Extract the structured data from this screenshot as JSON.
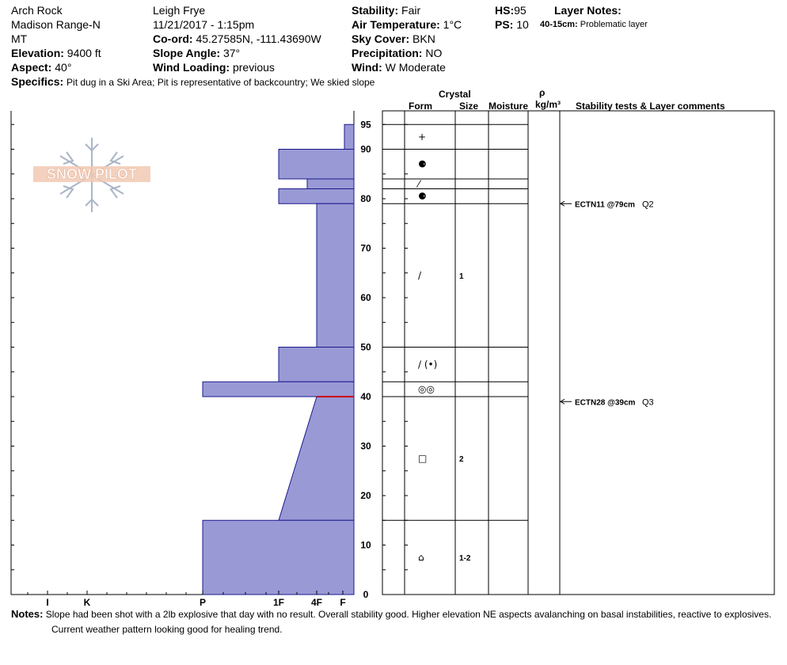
{
  "header": {
    "location": "Arch Rock",
    "range": "Madison Range-N",
    "state": "MT",
    "elevation_label": "Elevation:",
    "elevation": "9400 ft",
    "aspect_label": "Aspect:",
    "aspect": "40°",
    "observer": "Leigh Frye",
    "datetime": "11/21/2017 - 1:15pm",
    "coord_label": "Co-ord:",
    "coord": "45.27585N, -111.43690W",
    "slope_label": "Slope Angle:",
    "slope": "37°",
    "wind_loading_label": "Wind Loading:",
    "wind_loading": "previous",
    "stability_label": "Stability:",
    "stability": "Fair",
    "air_temp_label": "Air Temperature:",
    "air_temp": "1°C",
    "sky_label": "Sky Cover:",
    "sky": "BKN",
    "precip_label": "Precipitation:",
    "precip": "NO",
    "wind_label": "Wind:",
    "wind": "W Moderate",
    "hs_label": "HS:",
    "hs": "95",
    "ps_label": "PS:",
    "ps": "10",
    "layer_notes_label": "Layer Notes:",
    "layer_note_depth": "40-15cm:",
    "layer_note_text": "Problematic layer",
    "specifics_label": "Specifics:",
    "specifics": "Pit dug in a Ski Area; Pit is representative of backcountry; We skied slope"
  },
  "logo_text": "SNOW PILOT",
  "columns": {
    "crystal": "Crystal",
    "form": "Form",
    "size": "Size",
    "moisture": "Moisture",
    "rho": "ρ",
    "density_unit": "kg/m³",
    "stability_comments": "Stability tests & Layer comments"
  },
  "notes_label": "Notes:",
  "notes_line1": "Slope had been shot with a 2lb explosive that day with no result. Overall stability good. Higher elevation NE aspects avalanching on basal instabilities, reactive to explosives.",
  "notes_line2": "Current weather pattern looking good for healing trend.",
  "colors": {
    "hardness_fill": "#9999d6",
    "hardness_stroke": "#1a1a8c",
    "problem_line": "#cc0000"
  },
  "chart_data": {
    "type": "area",
    "title": "",
    "ylabel": "",
    "xlabel": "",
    "ylim": [
      0,
      95
    ],
    "y_ticks": [
      0,
      10,
      20,
      30,
      40,
      50,
      60,
      70,
      80,
      90,
      95
    ],
    "x_categories": [
      "I",
      "K",
      "P",
      "1F",
      "4F",
      "F"
    ],
    "hardness_profile": [
      {
        "top": 95,
        "bottom": 90,
        "hardness_top": "F+",
        "hardness_bottom": "F+"
      },
      {
        "top": 90,
        "bottom": 84,
        "hardness_top": "1F",
        "hardness_bottom": "1F"
      },
      {
        "top": 84,
        "bottom": 82,
        "hardness_top": "4F-",
        "hardness_bottom": "4F-"
      },
      {
        "top": 82,
        "bottom": 79,
        "hardness_top": "1F",
        "hardness_bottom": "1F"
      },
      {
        "top": 79,
        "bottom": 50,
        "hardness_top": "4F",
        "hardness_bottom": "4F"
      },
      {
        "top": 50,
        "bottom": 43,
        "hardness_top": "1F",
        "hardness_bottom": "1F"
      },
      {
        "top": 43,
        "bottom": 40,
        "hardness_top": "P",
        "hardness_bottom": "P"
      },
      {
        "top": 40,
        "bottom": 15,
        "hardness_top": "4F",
        "hardness_bottom": "1F"
      },
      {
        "top": 15,
        "bottom": 0,
        "hardness_top": "P",
        "hardness_bottom": "P"
      }
    ],
    "layers": [
      {
        "top": 95,
        "bottom": 90,
        "form": "+",
        "size": ""
      },
      {
        "top": 90,
        "bottom": 84,
        "form": "⚈",
        "size": ""
      },
      {
        "top": 84,
        "bottom": 82,
        "form": "⁄",
        "size": ""
      },
      {
        "top": 82,
        "bottom": 79,
        "form": "⚈",
        "size": ""
      },
      {
        "top": 79,
        "bottom": 50,
        "form": "/",
        "size": "1"
      },
      {
        "top": 50,
        "bottom": 43,
        "form": "/ (•)",
        "size": ""
      },
      {
        "top": 43,
        "bottom": 40,
        "form": "◎◎",
        "size": ""
      },
      {
        "top": 40,
        "bottom": 15,
        "form": "□",
        "size": "2"
      },
      {
        "top": 15,
        "bottom": 0,
        "form": "⌂",
        "size": "1-2"
      }
    ],
    "stability_tests": [
      {
        "depth": 79,
        "label": "ECTN11 @79cm",
        "quality": "Q2"
      },
      {
        "depth": 39,
        "label": "ECTN28 @39cm",
        "quality": "Q3"
      }
    ]
  }
}
